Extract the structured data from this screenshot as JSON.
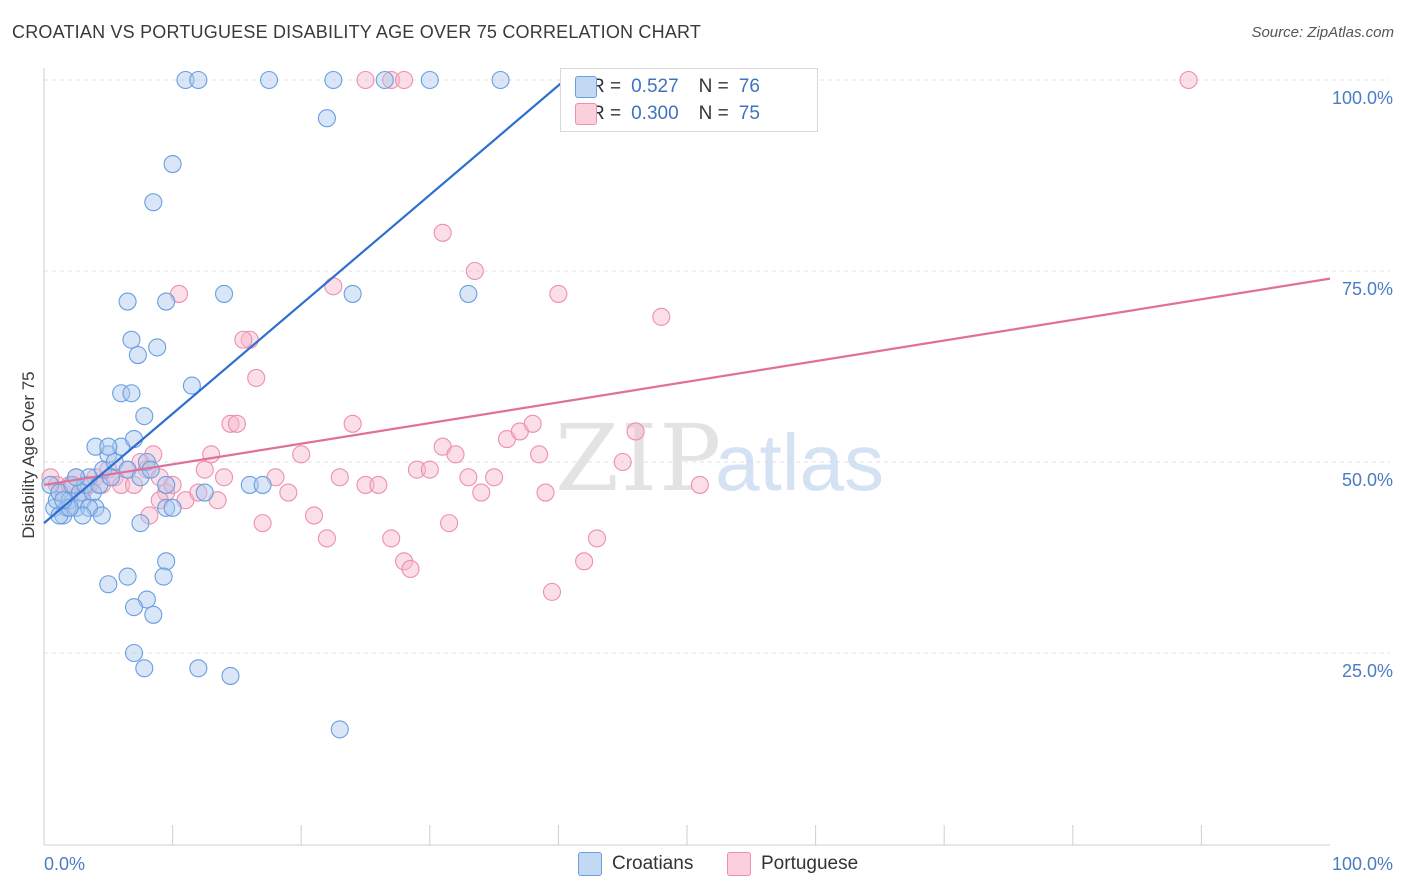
{
  "header": {
    "title": "CROATIAN VS PORTUGUESE DISABILITY AGE OVER 75 CORRELATION CHART",
    "source": "Source: ZipAtlas.com"
  },
  "watermark": "ZIPatlas",
  "legend_top": {
    "rows": [
      {
        "r_label": "R =",
        "r_value": "0.527",
        "n_label": "N =",
        "n_value": "76",
        "color": "#a9c8ee"
      },
      {
        "r_label": "R =",
        "r_value": "0.300",
        "n_label": "N =",
        "n_value": "75",
        "color": "#f5b8cb"
      }
    ]
  },
  "legend_bottom": {
    "items": [
      {
        "label": "Croatians",
        "color": "#a9c8ee"
      },
      {
        "label": "Portuguese",
        "color": "#f5b8cb"
      }
    ]
  },
  "chart_data": {
    "type": "scatter",
    "title": "CROATIAN VS PORTUGUESE DISABILITY AGE OVER 75 CORRELATION CHART",
    "xlabel": "",
    "ylabel": "Disability Age Over 75",
    "xlim": [
      0,
      100
    ],
    "ylim": [
      0,
      105
    ],
    "x_tick_labels": [
      "0.0%",
      "100.0%"
    ],
    "y_tick_labels": [
      "25.0%",
      "50.0%",
      "75.0%",
      "100.0%"
    ],
    "y_ticks": [
      25,
      50,
      75,
      100
    ],
    "grid": true,
    "legend_position": "top-center",
    "series": [
      {
        "name": "Croatians",
        "color": "#6a9ee0",
        "fill": "#a9c8ee",
        "trend": {
          "x0": 0,
          "y0": 42,
          "x1": 40.5,
          "y1": 100
        },
        "points": [
          [
            0.5,
            47
          ],
          [
            0.8,
            44
          ],
          [
            1,
            45
          ],
          [
            1.2,
            46
          ],
          [
            1.5,
            43
          ],
          [
            1.8,
            44
          ],
          [
            2,
            45
          ],
          [
            2.2,
            47
          ],
          [
            2.5,
            44
          ],
          [
            2.8,
            46
          ],
          [
            3,
            45
          ],
          [
            3.2,
            47
          ],
          [
            3.5,
            48
          ],
          [
            3.8,
            46
          ],
          [
            4,
            44
          ],
          [
            4.3,
            47
          ],
          [
            4.6,
            49
          ],
          [
            5,
            51
          ],
          [
            5.5,
            50
          ],
          [
            6,
            52
          ],
          [
            6.5,
            49
          ],
          [
            7,
            53
          ],
          [
            7.5,
            48
          ],
          [
            8,
            50
          ],
          [
            8.3,
            49
          ],
          [
            3.5,
            44
          ],
          [
            3,
            43
          ],
          [
            4,
            52
          ],
          [
            5,
            52
          ],
          [
            5.2,
            48
          ],
          [
            1.2,
            43
          ],
          [
            2,
            44
          ],
          [
            6,
            59
          ],
          [
            6.8,
            59
          ],
          [
            6.5,
            71
          ],
          [
            6.8,
            66
          ],
          [
            7.3,
            64
          ],
          [
            7.8,
            56
          ],
          [
            8.5,
            84
          ],
          [
            8.8,
            65
          ],
          [
            9.5,
            71
          ],
          [
            10,
            89
          ],
          [
            11,
            100
          ],
          [
            12,
            100
          ],
          [
            17.5,
            100
          ],
          [
            22.5,
            100
          ],
          [
            26.5,
            100
          ],
          [
            30,
            100
          ],
          [
            35.5,
            100
          ],
          [
            22,
            95
          ],
          [
            11.5,
            60
          ],
          [
            14,
            72
          ],
          [
            16,
            47
          ],
          [
            17,
            47
          ],
          [
            12.5,
            46
          ],
          [
            9.5,
            44
          ],
          [
            9.5,
            37
          ],
          [
            9.3,
            35
          ],
          [
            8,
            32
          ],
          [
            7,
            31
          ],
          [
            8.5,
            30
          ],
          [
            6.5,
            35
          ],
          [
            5,
            34
          ],
          [
            7.5,
            42
          ],
          [
            7,
            25
          ],
          [
            7.8,
            23
          ],
          [
            12,
            23
          ],
          [
            14.5,
            22
          ],
          [
            23,
            15
          ],
          [
            24,
            72
          ],
          [
            33,
            72
          ],
          [
            9.5,
            47
          ],
          [
            10,
            44
          ],
          [
            4.5,
            43
          ],
          [
            2.5,
            48
          ],
          [
            1.5,
            45
          ]
        ]
      },
      {
        "name": "Portuguese",
        "color": "#ee8fae",
        "fill": "#f5b8cb",
        "trend": {
          "x0": 0,
          "y0": 47,
          "x1": 100,
          "y1": 74
        },
        "points": [
          [
            0.5,
            48
          ],
          [
            1,
            47
          ],
          [
            1.5,
            46
          ],
          [
            2,
            47
          ],
          [
            2.5,
            48
          ],
          [
            3,
            46
          ],
          [
            3.5,
            47
          ],
          [
            4,
            48
          ],
          [
            4.5,
            47
          ],
          [
            5,
            49
          ],
          [
            5.5,
            48
          ],
          [
            6,
            47
          ],
          [
            6.5,
            49
          ],
          [
            7,
            47
          ],
          [
            7.5,
            50
          ],
          [
            8,
            49
          ],
          [
            8.5,
            51
          ],
          [
            9,
            48
          ],
          [
            9.5,
            46
          ],
          [
            10,
            47
          ],
          [
            11,
            45
          ],
          [
            12,
            46
          ],
          [
            12.5,
            49
          ],
          [
            13,
            51
          ],
          [
            14,
            48
          ],
          [
            14.5,
            55
          ],
          [
            15,
            55
          ],
          [
            16,
            66
          ],
          [
            16.5,
            61
          ],
          [
            17,
            42
          ],
          [
            18,
            48
          ],
          [
            19,
            46
          ],
          [
            20,
            51
          ],
          [
            21,
            43
          ],
          [
            22,
            40
          ],
          [
            22.5,
            73
          ],
          [
            23,
            48
          ],
          [
            24,
            55
          ],
          [
            25,
            47
          ],
          [
            26,
            47
          ],
          [
            27,
            40
          ],
          [
            28,
            37
          ],
          [
            28.5,
            36
          ],
          [
            29,
            49
          ],
          [
            30,
            49
          ],
          [
            31,
            52
          ],
          [
            32,
            51
          ],
          [
            33,
            48
          ],
          [
            33.5,
            75
          ],
          [
            34,
            46
          ],
          [
            35,
            48
          ],
          [
            36,
            53
          ],
          [
            37,
            54
          ],
          [
            38,
            55
          ],
          [
            38.5,
            51
          ],
          [
            39,
            46
          ],
          [
            39.5,
            33
          ],
          [
            40,
            72
          ],
          [
            42,
            37
          ],
          [
            43,
            40
          ],
          [
            45,
            50
          ],
          [
            46,
            54
          ],
          [
            48,
            69
          ],
          [
            51,
            47
          ],
          [
            89,
            100
          ],
          [
            25,
            100
          ],
          [
            27,
            100
          ],
          [
            28,
            100
          ],
          [
            31,
            80
          ],
          [
            8.2,
            43
          ],
          [
            15.5,
            66
          ],
          [
            10.5,
            72
          ],
          [
            13.5,
            45
          ],
          [
            31.5,
            42
          ],
          [
            9,
            45
          ]
        ]
      }
    ]
  }
}
